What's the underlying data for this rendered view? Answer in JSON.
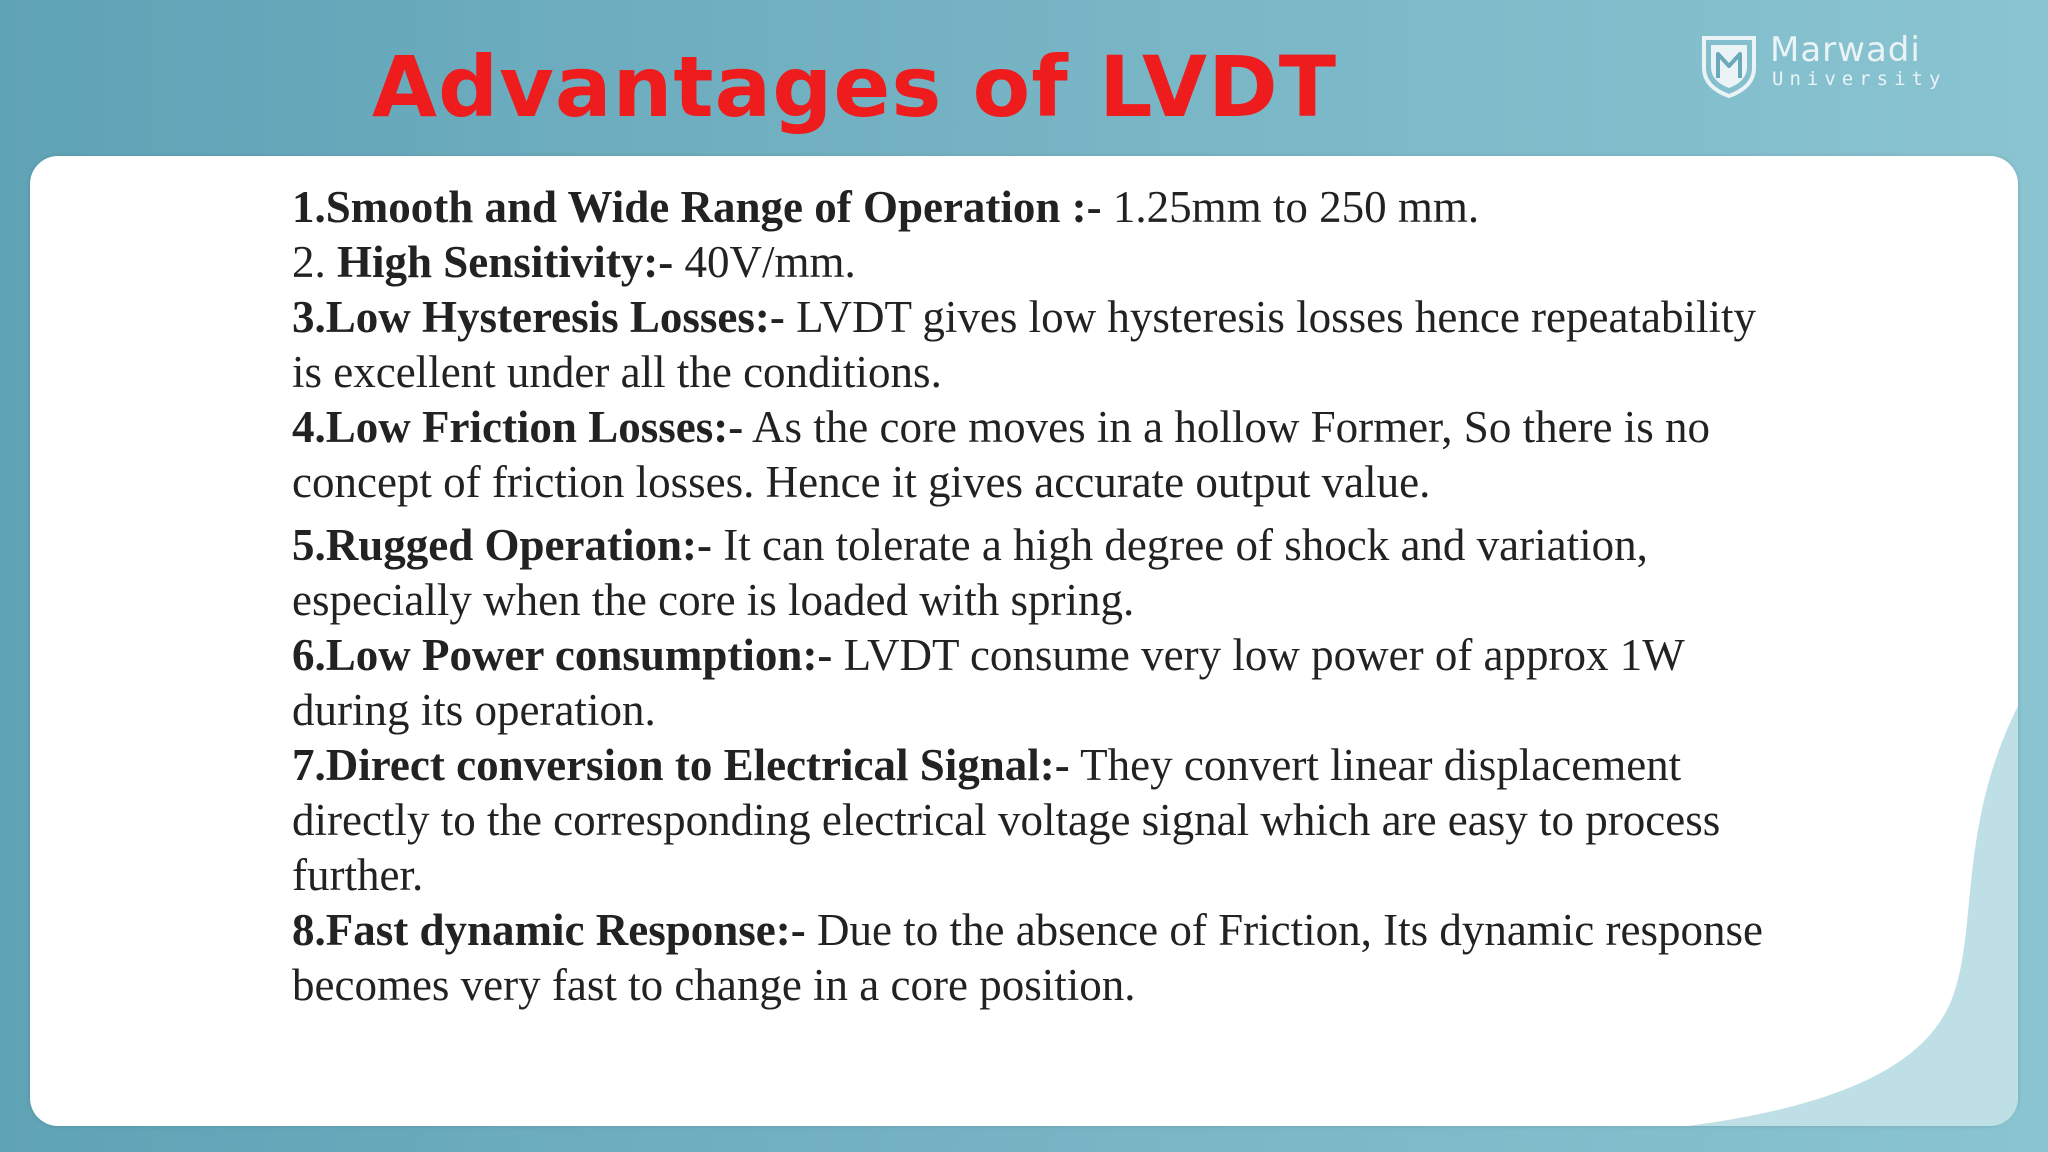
{
  "slide": {
    "title": "Advantages of LVDT"
  },
  "logo": {
    "name": "Marwadi",
    "subtitle": "University",
    "icon": "shield-m-icon"
  },
  "colors": {
    "title": "#ee1c1c",
    "background": "#74b2c3",
    "panel": "#ffffff",
    "text": "#222222"
  },
  "items": [
    {
      "head": "1.Smooth and Wide Range of Operation :-",
      "body": " 1.25mm to 250 mm."
    },
    {
      "prefix": "2. ",
      "head": "High Sensitivity:-",
      "body": " 40V/mm."
    },
    {
      "head": "3.Low Hysteresis Losses:-",
      "body": " LVDT gives low hysteresis losses hence repeatability is excellent under all the conditions."
    },
    {
      "head": "4.Low Friction Losses:-",
      "body": " As the core moves in a hollow Former, So there is no concept of friction losses. Hence it gives accurate output value."
    },
    {
      "head": "5.Rugged Operation:-",
      "body": " It can tolerate a high degree of shock and variation, especially when the core is loaded with spring."
    },
    {
      "head": "6.Low Power consumption:-",
      "body": " LVDT consume very low power of approx 1W during its operation."
    },
    {
      "head": "7.Direct conversion to Electrical Signal:-",
      "body": " They convert linear displacement directly to the corresponding electrical voltage signal which are easy to process further."
    },
    {
      "head": "8.Fast dynamic Response:-",
      "body": " Due to the absence of Friction, Its dynamic response becomes very fast to change in a core position."
    }
  ]
}
